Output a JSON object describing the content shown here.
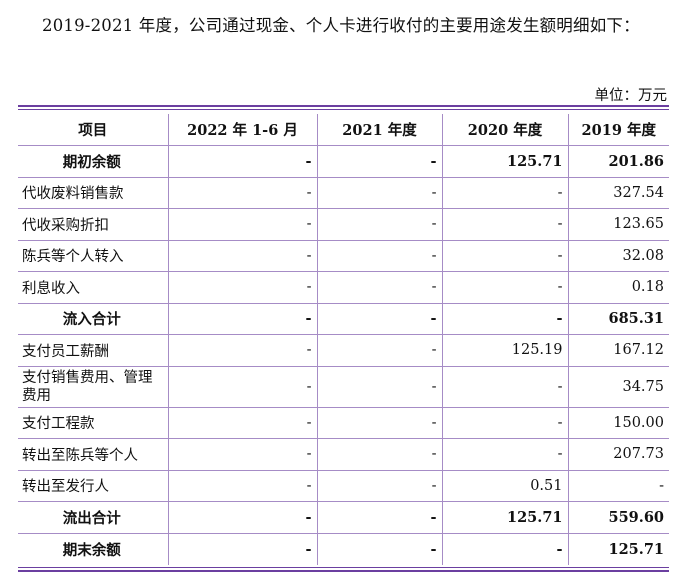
{
  "intro": "2019-2021 年度，公司通过现金、个人卡进行收付的主要用途发生额明细如下：",
  "unit": "单位：万元",
  "table": {
    "headers": [
      "项目",
      "2022 年 1-6 月",
      "2021 年度",
      "2020 年度",
      "2019 年度"
    ],
    "rows": [
      {
        "label": "期初余额",
        "bold": true,
        "values": [
          "-",
          "-",
          "125.71",
          "201.86"
        ]
      },
      {
        "label": "代收废料销售款",
        "bold": false,
        "values": [
          "-",
          "-",
          "-",
          "327.54"
        ]
      },
      {
        "label": "代收采购折扣",
        "bold": false,
        "values": [
          "-",
          "-",
          "-",
          "123.65"
        ]
      },
      {
        "label": "陈兵等个人转入",
        "bold": false,
        "values": [
          "-",
          "-",
          "-",
          "32.08"
        ]
      },
      {
        "label": "利息收入",
        "bold": false,
        "values": [
          "-",
          "-",
          "-",
          "0.18"
        ]
      },
      {
        "label": "流入合计",
        "bold": true,
        "values": [
          "-",
          "-",
          "-",
          "685.31"
        ]
      },
      {
        "label": "支付员工薪酬",
        "bold": false,
        "values": [
          "-",
          "-",
          "125.19",
          "167.12"
        ]
      },
      {
        "label": "支付销售费用、管理费用",
        "bold": false,
        "tall": true,
        "values": [
          "-",
          "-",
          "-",
          "34.75"
        ]
      },
      {
        "label": "支付工程款",
        "bold": false,
        "values": [
          "-",
          "-",
          "-",
          "150.00"
        ]
      },
      {
        "label": "转出至陈兵等个人",
        "bold": false,
        "values": [
          "-",
          "-",
          "-",
          "207.73"
        ]
      },
      {
        "label": "转出至发行人",
        "bold": false,
        "values": [
          "-",
          "-",
          "0.51",
          "-"
        ]
      },
      {
        "label": "流出合计",
        "bold": true,
        "values": [
          "-",
          "-",
          "125.71",
          "559.60"
        ]
      },
      {
        "label": "期末余额",
        "bold": true,
        "values": [
          "-",
          "-",
          "-",
          "125.71"
        ]
      }
    ]
  }
}
